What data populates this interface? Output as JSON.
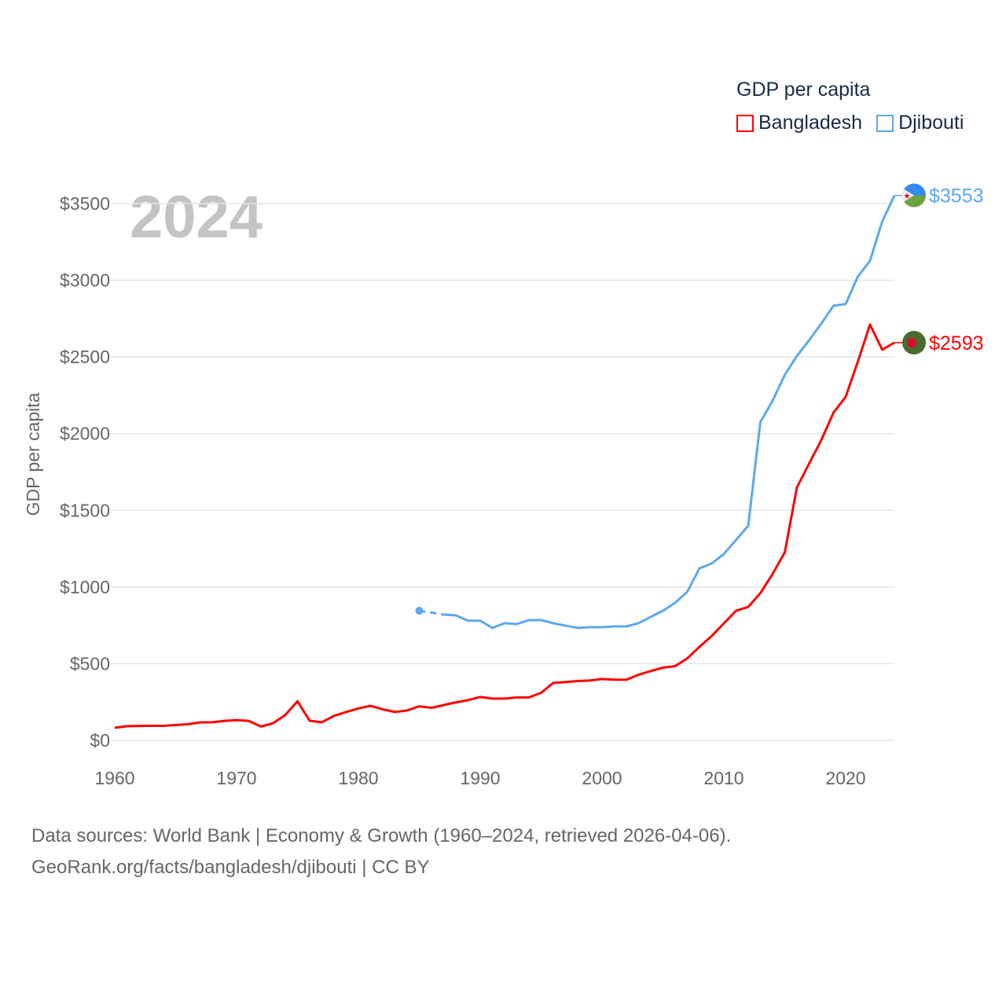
{
  "chart_data": {
    "type": "line",
    "title": "GDP per capita",
    "year_label": "2024",
    "ylabel": "GDP per capita",
    "xlabel": "",
    "xlim": [
      1960,
      2024
    ],
    "ylim": [
      0,
      3500
    ],
    "x_ticks": [
      "1960",
      "1970",
      "1980",
      "1990",
      "2000",
      "2010",
      "2020"
    ],
    "y_ticks": [
      {
        "value": 0,
        "label": "$0"
      },
      {
        "value": 500,
        "label": "$500"
      },
      {
        "value": 1000,
        "label": "$1000"
      },
      {
        "value": 1500,
        "label": "$1500"
      },
      {
        "value": 2000,
        "label": "$2000"
      },
      {
        "value": 2500,
        "label": "$2500"
      },
      {
        "value": 3000,
        "label": "$3000"
      },
      {
        "value": 3500,
        "label": "$3500"
      }
    ],
    "grid": true,
    "legend_placement": "top-right",
    "series": [
      {
        "name": "Bangladesh",
        "color": "#ff0000",
        "end_label": "$2593",
        "start_year": 1960,
        "values": [
          82,
          92,
          94,
          95,
          95,
          100,
          105,
          117,
          118,
          127,
          132,
          127,
          90,
          112,
          165,
          255,
          128,
          118,
          160,
          185,
          208,
          225,
          202,
          185,
          195,
          222,
          212,
          230,
          248,
          262,
          283,
          272,
          272,
          280,
          280,
          310,
          375,
          380,
          387,
          390,
          400,
          396,
          395,
          428,
          452,
          474,
          484,
          535,
          610,
          680,
          763,
          845,
          870,
          960,
          1085,
          1225,
          1650,
          1805,
          1958,
          2137,
          2240,
          2470,
          2711,
          2547,
          2593
        ]
      },
      {
        "name": "Djibouti",
        "color": "#5ca8ee",
        "end_label": "$3553",
        "start_year": 1985,
        "dashed_until": 1987,
        "values": [
          845,
          null,
          820,
          815,
          780,
          780,
          733,
          764,
          758,
          784,
          784,
          764,
          748,
          733,
          738,
          738,
          743,
          743,
          764,
          805,
          845,
          897,
          969,
          1122,
          1153,
          1215,
          1307,
          1399,
          2076,
          2214,
          2383,
          2506,
          2609,
          2717,
          2834,
          2845,
          3024,
          3127,
          3383,
          3553
        ]
      }
    ]
  },
  "footer": {
    "line1": "Data sources: World Bank | Economy & Growth (1960–2024, retrieved 2026-04-06).",
    "line2": "GeoRank.org/facts/bangladesh/djibouti | CC BY"
  }
}
